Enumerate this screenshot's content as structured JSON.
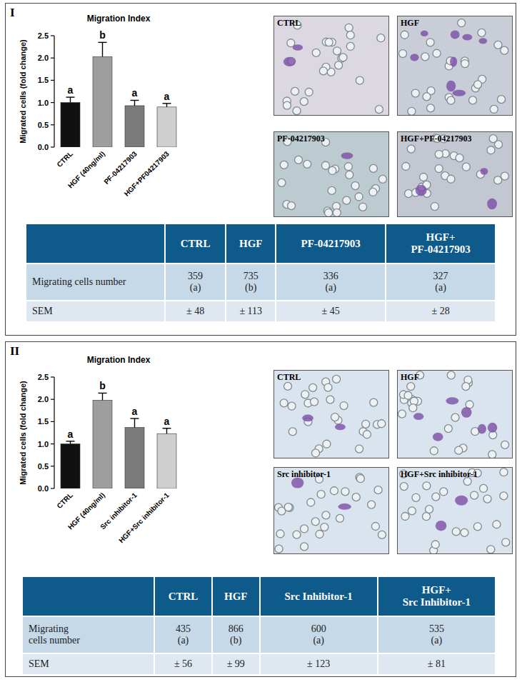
{
  "chart_data": [
    {
      "type": "bar",
      "title": "Migration Index",
      "y_label": "Migrated cells (fold change)",
      "categories": [
        "CTRL",
        "HGF (40ng/ml)",
        "PF-04217903",
        "HGF+PF04217903"
      ],
      "values": [
        1.0,
        2.03,
        0.93,
        0.9
      ],
      "errors": [
        0.12,
        0.32,
        0.12,
        0.08
      ],
      "annotations": [
        "a",
        "b",
        "a",
        "a"
      ],
      "colors": [
        "#111111",
        "#9e9e9e",
        "#7a7a7a",
        "#cfcfcf"
      ],
      "ylim": [
        0,
        2.5
      ],
      "yticks": [
        {
          "value": 0,
          "label": "0.0"
        },
        {
          "value": 0.5,
          "label": "0.5"
        },
        {
          "value": 1,
          "label": "1.0"
        },
        {
          "value": 1.5,
          "label": "1.5"
        },
        {
          "value": 2,
          "label": "2.0"
        },
        {
          "value": 2.5,
          "label": "2.5"
        }
      ]
    },
    {
      "type": "bar",
      "title": "Migration Index",
      "y_label": "Migrated cells (fold change)",
      "categories": [
        "CTRL",
        "HGF (40ng/ml)",
        "Src inhibitor-1",
        "HGF+Src inhibitor-1"
      ],
      "values": [
        1.0,
        1.98,
        1.37,
        1.23
      ],
      "errors": [
        0.06,
        0.16,
        0.2,
        0.12
      ],
      "annotations": [
        "a",
        "b",
        "a",
        "a"
      ],
      "colors": [
        "#111111",
        "#9e9e9e",
        "#7a7a7a",
        "#cfcfcf"
      ],
      "ylim": [
        0,
        2.5
      ],
      "yticks": [
        {
          "value": 0,
          "label": "0.0"
        },
        {
          "value": 0.5,
          "label": "0.5"
        },
        {
          "value": 1,
          "label": "1.0"
        },
        {
          "value": 1.5,
          "label": "1.5"
        },
        {
          "value": 2,
          "label": "2.0"
        },
        {
          "value": 2.5,
          "label": "2.5"
        }
      ]
    }
  ],
  "panels": [
    {
      "label": "I",
      "images": [
        "CTRL",
        "HGF",
        "PF-04217903",
        "HGF+PF-04217903"
      ],
      "table": {
        "columns": [
          "CTRL",
          "HGF",
          "PF-04217903",
          "HGF+\nPF-04217903"
        ],
        "rows": [
          {
            "label": "Migrating cells number",
            "values": [
              359,
              735,
              336,
              327
            ],
            "groups": [
              "(a)",
              "(b)",
              "(a)",
              "(a)"
            ]
          },
          {
            "label": "SEM",
            "values": [
              "± 48",
              "± 113",
              "± 45",
              "± 28"
            ]
          }
        ]
      }
    },
    {
      "label": "II",
      "images": [
        "CTRL",
        "HGF",
        "Src inhibitor-1",
        "HGF+Src inhibitor-1"
      ],
      "table": {
        "columns": [
          "CTRL",
          "HGF",
          "Src Inhibitor-1",
          "HGF+\nSrc  Inhibitor-1"
        ],
        "rows": [
          {
            "label": "Migrating\ncells number",
            "values": [
              435,
              866,
              600,
              535
            ],
            "groups": [
              "(a)",
              "(b)",
              "(a)",
              "(a)"
            ]
          },
          {
            "label": "SEM",
            "values": [
              "± 56",
              "± 99",
              "± 123",
              "± 81"
            ]
          }
        ]
      }
    }
  ]
}
